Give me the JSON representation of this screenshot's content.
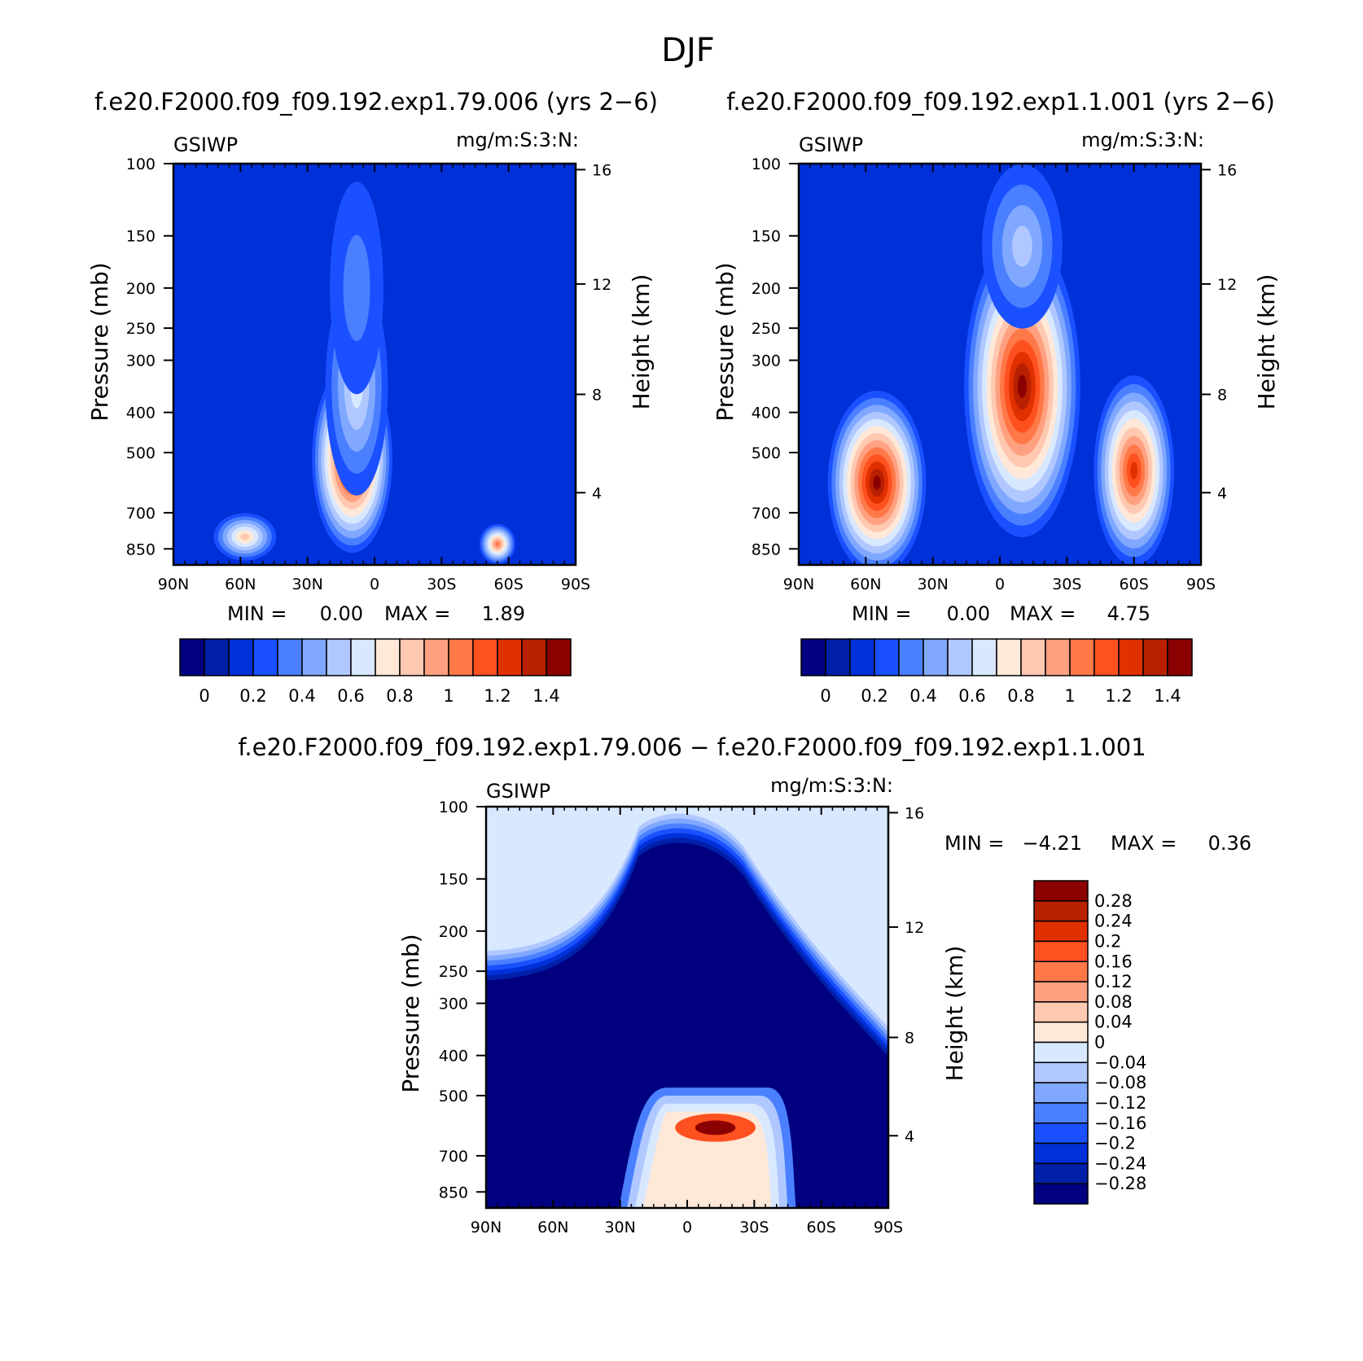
{
  "title": "DJF",
  "colors": {
    "abs_scale": [
      "#000080",
      "#0020a8",
      "#0030d8",
      "#1a50ff",
      "#4a80ff",
      "#80a8ff",
      "#b0c8ff",
      "#d8e8ff",
      "#ffe8d8",
      "#ffc8b0",
      "#ffa080",
      "#ff7848",
      "#ff5020",
      "#e03000",
      "#b82000",
      "#8b0000"
    ],
    "diff_scale": [
      "#000080",
      "#0020a8",
      "#0030d8",
      "#1a50ff",
      "#4a80ff",
      "#80a8ff",
      "#b0c8ff",
      "#d8e8ff",
      "#ffe8d8",
      "#ffc8b0",
      "#ffa080",
      "#ff7848",
      "#ff5020",
      "#e03000",
      "#b82000",
      "#8b0000"
    ]
  },
  "chart_data": [
    {
      "type": "heatmap",
      "title": "f.e20.F2000.f09_f09.192.exp1.79.006 (yrs 2−6)",
      "field": "GSIWP",
      "units": "mg/m:S:3:N:",
      "ylabel": "Pressure (mb)",
      "y2label": "Height (km)",
      "x_ticks": [
        "90N",
        "60N",
        "30N",
        "0",
        "30S",
        "60S",
        "90S"
      ],
      "y_ticks": [
        "100",
        "150",
        "200",
        "250",
        "300",
        "400",
        "500",
        "700",
        "850"
      ],
      "y2_ticks": [
        "16",
        "12",
        "8",
        "4"
      ],
      "min_label": "MIN =",
      "min_value": "0.00",
      "max_label": "MAX =",
      "max_value": "1.89",
      "colorbar_labels": [
        "0",
        "0.2",
        "0.4",
        "0.6",
        "0.8",
        "1",
        "1.2",
        "1.4"
      ],
      "blobs": [
        {
          "lat": 10,
          "p": 520,
          "lat_w": 18,
          "p_w": 500,
          "level": 15
        },
        {
          "lat": 8,
          "p": 350,
          "lat_w": 14,
          "p_w": 380,
          "level": 7
        },
        {
          "lat": 8,
          "p": 200,
          "lat_w": 12,
          "p_w": 260,
          "level": 4
        },
        {
          "lat": 58,
          "p": 800,
          "lat_w": 14,
          "p_w": 160,
          "level": 9
        },
        {
          "lat": -55,
          "p": 830,
          "lat_w": 8,
          "p_w": 120,
          "level": 11
        }
      ],
      "background_level": 2
    },
    {
      "type": "heatmap",
      "title": "f.e20.F2000.f09_f09.192.exp1.1.001 (yrs 2−6)",
      "field": "GSIWP",
      "units": "mg/m:S:3:N:",
      "ylabel": "Pressure (mb)",
      "y2label": "Height (km)",
      "x_ticks": [
        "90N",
        "60N",
        "30N",
        "0",
        "30S",
        "60S",
        "90S"
      ],
      "y_ticks": [
        "100",
        "150",
        "200",
        "250",
        "300",
        "400",
        "500",
        "700",
        "850"
      ],
      "y2_ticks": [
        "16",
        "12",
        "8",
        "4"
      ],
      "min_label": "MIN =",
      "min_value": "0.00",
      "max_label": "MAX =",
      "max_value": "4.75",
      "colorbar_labels": [
        "0",
        "0.2",
        "0.4",
        "0.6",
        "0.8",
        "1",
        "1.2",
        "1.4"
      ],
      "blobs": [
        {
          "lat": -10,
          "p": 350,
          "lat_w": 26,
          "p_w": 480,
          "level": 15
        },
        {
          "lat": 55,
          "p": 600,
          "lat_w": 22,
          "p_w": 520,
          "level": 15
        },
        {
          "lat": -60,
          "p": 560,
          "lat_w": 18,
          "p_w": 540,
          "level": 13
        },
        {
          "lat": -10,
          "p": 160,
          "lat_w": 18,
          "p_w": 180,
          "level": 6
        }
      ],
      "background_level": 2
    },
    {
      "type": "heatmap",
      "title": "f.e20.F2000.f09_f09.192.exp1.79.006 − f.e20.F2000.f09_f09.192.exp1.1.001",
      "field": "GSIWP",
      "units": "mg/m:S:3:N:",
      "ylabel": "Pressure (mb)",
      "y2label": "Height (km)",
      "x_ticks": [
        "90N",
        "60N",
        "30N",
        "0",
        "30S",
        "60S",
        "90S"
      ],
      "y_ticks": [
        "100",
        "150",
        "200",
        "250",
        "300",
        "400",
        "500",
        "700",
        "850"
      ],
      "y2_ticks": [
        "16",
        "12",
        "8",
        "4"
      ],
      "min_label": "MIN =",
      "min_value": "−4.21",
      "max_label": "MAX =",
      "max_value": "0.36",
      "colorbar_labels": [
        "0.28",
        "0.24",
        "0.2",
        "0.16",
        "0.12",
        "0.08",
        "0.04",
        "0",
        "−0.04",
        "−0.08",
        "−0.12",
        "−0.16",
        "−0.2",
        "−0.24",
        "−0.28"
      ]
    }
  ]
}
